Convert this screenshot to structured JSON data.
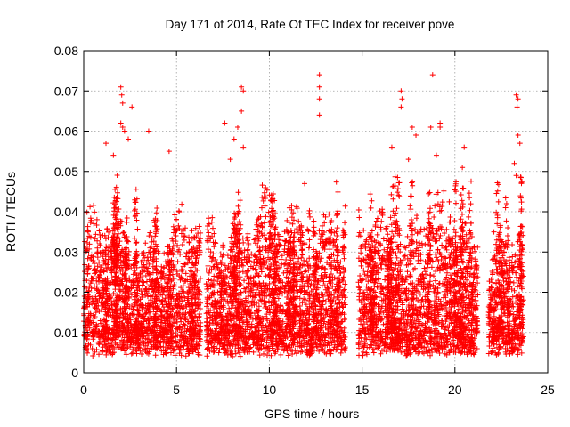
{
  "chart_data": {
    "type": "scatter",
    "title": "Day 171 of 2014, Rate Of TEC Index for receiver pove",
    "xlabel": "GPS time / hours",
    "ylabel": "ROTI / TECUs",
    "xlim": [
      0,
      25
    ],
    "ylim": [
      0,
      0.08
    ],
    "xticks": [
      "0",
      "5",
      "10",
      "15",
      "20",
      "25"
    ],
    "yticks": [
      "0",
      "0.01",
      "0.02",
      "0.03",
      "0.04",
      "0.05",
      "0.06",
      "0.07",
      "0.08"
    ],
    "grid": true,
    "legend": "none",
    "marker": "plus",
    "color": "#ff0000",
    "coverage_segments": [
      {
        "start": 0.0,
        "end": 6.3,
        "base_peak": 0.03
      },
      {
        "start": 6.6,
        "end": 9.0,
        "base_peak": 0.032
      },
      {
        "start": 9.0,
        "end": 14.1,
        "base_peak": 0.034
      },
      {
        "start": 14.8,
        "end": 21.2,
        "base_peak": 0.033
      },
      {
        "start": 21.8,
        "end": 23.7,
        "base_peak": 0.028
      }
    ],
    "highlight_points": [
      {
        "x": 2.0,
        "y": 0.071
      },
      {
        "x": 2.05,
        "y": 0.069
      },
      {
        "x": 2.1,
        "y": 0.067
      },
      {
        "x": 2.0,
        "y": 0.062
      },
      {
        "x": 2.1,
        "y": 0.061
      },
      {
        "x": 2.2,
        "y": 0.06
      },
      {
        "x": 2.6,
        "y": 0.066
      },
      {
        "x": 3.5,
        "y": 0.06
      },
      {
        "x": 2.4,
        "y": 0.058
      },
      {
        "x": 1.2,
        "y": 0.057
      },
      {
        "x": 1.6,
        "y": 0.054
      },
      {
        "x": 4.6,
        "y": 0.055
      },
      {
        "x": 8.5,
        "y": 0.071
      },
      {
        "x": 8.6,
        "y": 0.07
      },
      {
        "x": 8.5,
        "y": 0.065
      },
      {
        "x": 7.6,
        "y": 0.062
      },
      {
        "x": 8.3,
        "y": 0.061
      },
      {
        "x": 8.1,
        "y": 0.058
      },
      {
        "x": 8.6,
        "y": 0.056
      },
      {
        "x": 7.9,
        "y": 0.053
      },
      {
        "x": 12.7,
        "y": 0.074
      },
      {
        "x": 12.7,
        "y": 0.071
      },
      {
        "x": 12.7,
        "y": 0.068
      },
      {
        "x": 12.7,
        "y": 0.064
      },
      {
        "x": 11.9,
        "y": 0.047
      },
      {
        "x": 17.1,
        "y": 0.07
      },
      {
        "x": 17.15,
        "y": 0.068
      },
      {
        "x": 17.1,
        "y": 0.066
      },
      {
        "x": 18.8,
        "y": 0.074
      },
      {
        "x": 18.7,
        "y": 0.061
      },
      {
        "x": 19.2,
        "y": 0.062
      },
      {
        "x": 19.2,
        "y": 0.061
      },
      {
        "x": 17.7,
        "y": 0.061
      },
      {
        "x": 16.6,
        "y": 0.056
      },
      {
        "x": 17.9,
        "y": 0.059
      },
      {
        "x": 19.0,
        "y": 0.054
      },
      {
        "x": 20.5,
        "y": 0.056
      },
      {
        "x": 20.4,
        "y": 0.051
      },
      {
        "x": 17.5,
        "y": 0.053
      },
      {
        "x": 23.3,
        "y": 0.069
      },
      {
        "x": 23.4,
        "y": 0.068
      },
      {
        "x": 23.35,
        "y": 0.066
      },
      {
        "x": 23.4,
        "y": 0.059
      },
      {
        "x": 23.5,
        "y": 0.057
      },
      {
        "x": 23.2,
        "y": 0.052
      },
      {
        "x": 23.3,
        "y": 0.049
      },
      {
        "x": 22.1,
        "y": 0.035
      }
    ]
  }
}
